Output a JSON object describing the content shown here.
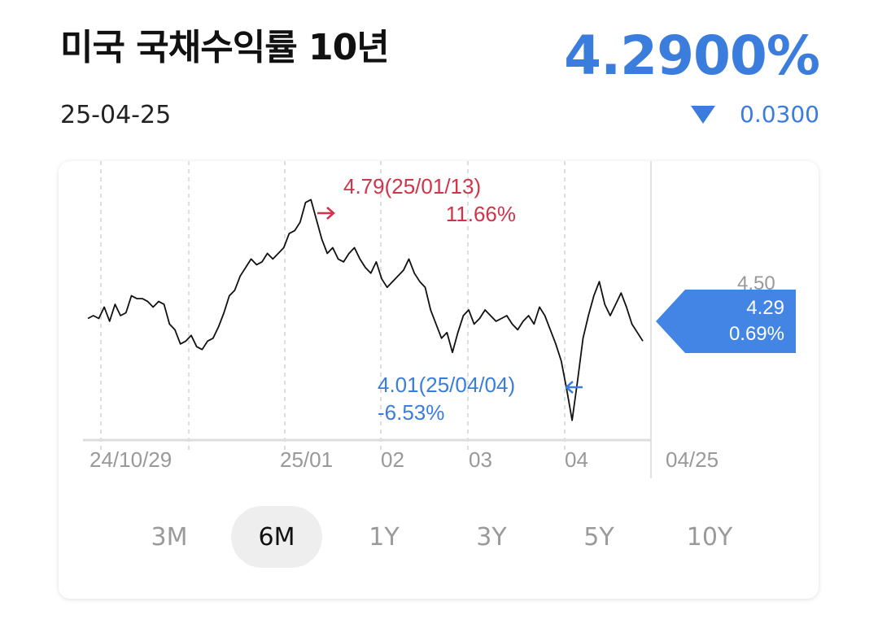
{
  "header": {
    "title": "미국 국채수익률 10년",
    "date": "25-04-25",
    "price": "4.2900%",
    "change": "0.0300",
    "change_direction": "down",
    "accent_color": "#3b7ddd"
  },
  "chart_data": {
    "type": "line",
    "x_tick_labels": [
      "24/10/29",
      "25/01",
      "02",
      "03",
      "04",
      "04/25"
    ],
    "y_tick_labels": [
      "4.50"
    ],
    "series": [
      {
        "values": [
          4.37,
          4.38,
          4.37,
          4.41,
          4.36,
          4.42,
          4.38,
          4.39,
          4.45,
          4.44,
          4.44,
          4.43,
          4.41,
          4.43,
          4.42,
          4.35,
          4.33,
          4.28,
          4.29,
          4.31,
          4.27,
          4.26,
          4.29,
          4.3,
          4.34,
          4.39,
          4.45,
          4.47,
          4.52,
          4.55,
          4.58,
          4.56,
          4.57,
          4.6,
          4.58,
          4.6,
          4.62,
          4.67,
          4.68,
          4.71,
          4.78,
          4.79,
          4.72,
          4.65,
          4.6,
          4.62,
          4.58,
          4.57,
          4.6,
          4.62,
          4.58,
          4.55,
          4.53,
          4.57,
          4.51,
          4.48,
          4.5,
          4.52,
          4.54,
          4.58,
          4.53,
          4.5,
          4.48,
          4.4,
          4.35,
          4.3,
          4.32,
          4.25,
          4.32,
          4.38,
          4.4,
          4.35,
          4.37,
          4.4,
          4.38,
          4.36,
          4.37,
          4.38,
          4.35,
          4.33,
          4.36,
          4.38,
          4.35,
          4.41,
          4.38,
          4.33,
          4.28,
          4.22,
          4.12,
          4.01,
          4.15,
          4.3,
          4.38,
          4.45,
          4.5,
          4.42,
          4.38,
          4.42,
          4.46,
          4.41,
          4.35,
          4.32,
          4.29
        ],
        "color": "#111111"
      }
    ],
    "ylim": [
      3.94,
      4.84
    ],
    "grid": "vertical dashed",
    "annotations": {
      "high": {
        "label": "4.79(25/01/13)",
        "pct": "11.66%",
        "value": 4.79,
        "color": "#d0344a"
      },
      "low": {
        "label": "4.01(25/04/04)",
        "pct": "-6.53%",
        "value": 4.01,
        "color": "#3b7ddd"
      },
      "current": {
        "value": "4.29",
        "pct": "0.69%",
        "color": "#4285e4"
      }
    }
  },
  "tabs": [
    {
      "label": "3M",
      "active": false
    },
    {
      "label": "6M",
      "active": true
    },
    {
      "label": "1Y",
      "active": false
    },
    {
      "label": "3Y",
      "active": false
    },
    {
      "label": "5Y",
      "active": false
    },
    {
      "label": "10Y",
      "active": false
    }
  ]
}
